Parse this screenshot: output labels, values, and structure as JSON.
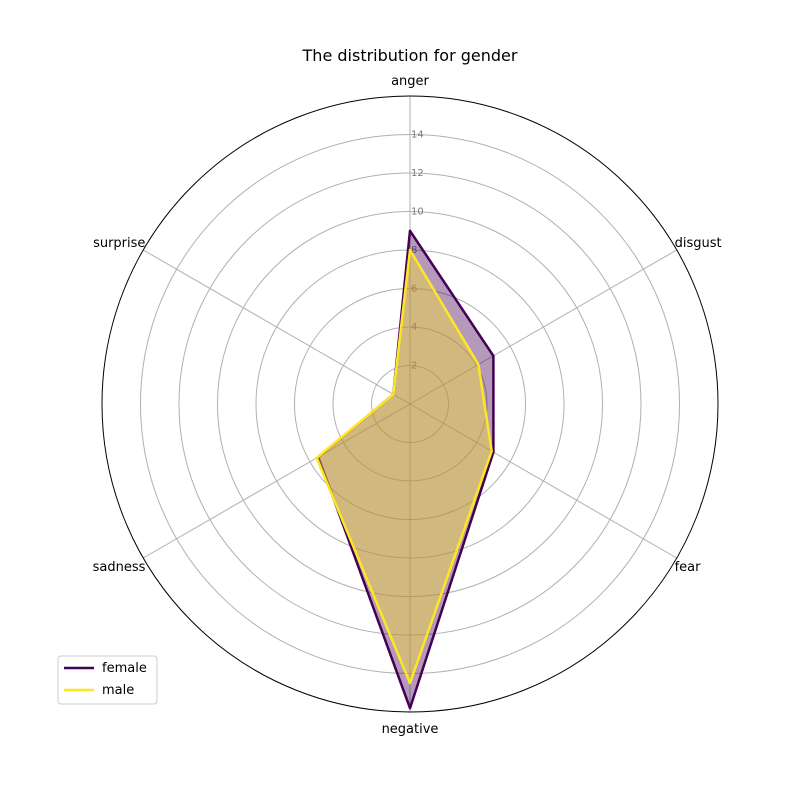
{
  "chart_data": {
    "type": "radar",
    "title": "The distribution for gender",
    "categories": [
      "anger",
      "disgust",
      "fear",
      "negative",
      "sadness",
      "surprise"
    ],
    "rlim": [
      0,
      16
    ],
    "rticks": [
      2,
      4,
      6,
      8,
      10,
      12,
      14
    ],
    "series": [
      {
        "name": "female",
        "values": [
          9.0,
          5.0,
          5.0,
          15.8,
          5.5,
          1.0
        ],
        "color": "#440154"
      },
      {
        "name": "male",
        "values": [
          8.0,
          4.1,
          4.9,
          14.5,
          5.6,
          1.0
        ],
        "color": "#fde725"
      }
    ],
    "grid": true,
    "legend_position": "lower-left"
  }
}
